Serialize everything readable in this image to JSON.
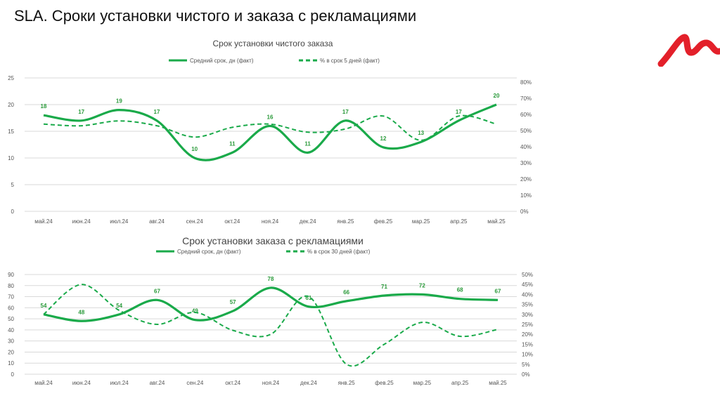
{
  "page": {
    "title": "SLA. Сроки установки чистого и заказа с рекламациями",
    "logo_text": "M"
  },
  "colors": {
    "line": "#1aaa4a",
    "label": "#2a9a3a",
    "axis": "#555",
    "grid": "#d9d9d9",
    "logo": "#e3202a"
  },
  "chart_data": [
    {
      "type": "line",
      "title": "Срок установки чистого заказа",
      "categories": [
        "май.24",
        "июн.24",
        "июл.24",
        "авг.24",
        "сен.24",
        "окт.24",
        "ноя.24",
        "дек.24",
        "янв.25",
        "фев.25",
        "мар.25",
        "апр.25",
        "май.25"
      ],
      "series": [
        {
          "name": "Средний срок, дн (факт)",
          "axis": "left",
          "style": "solid",
          "values": [
            18,
            17,
            19,
            17,
            10,
            11,
            16,
            11,
            17,
            12,
            13,
            17,
            20
          ],
          "labels": [
            "18",
            "17",
            "19",
            "17",
            "10",
            "11",
            "16",
            "11",
            "17",
            "12",
            "13",
            "17",
            "20"
          ]
        },
        {
          "name": "% в срок 5 дней (факт)",
          "axis": "right",
          "style": "dashed",
          "values": [
            54,
            53,
            56,
            53,
            46,
            52,
            54,
            49,
            51,
            59,
            44,
            59,
            54
          ]
        }
      ],
      "ylim": [
        0,
        25
      ],
      "yticks": [
        "0",
        "5",
        "10",
        "15",
        "20",
        "25"
      ],
      "y2lim": [
        0,
        80
      ],
      "y2ticks": [
        "0%",
        "10%",
        "20%",
        "30%",
        "40%",
        "50%",
        "60%",
        "70%",
        "80%"
      ],
      "legend": "top"
    },
    {
      "type": "line",
      "title": "Срок установки заказа с рекламациями",
      "categories": [
        "май.24",
        "июн.24",
        "июл.24",
        "авг.24",
        "сен.24",
        "окт.24",
        "ноя.24",
        "дек.24",
        "янв.25",
        "фев.25",
        "мар.25",
        "апр.25",
        "май.25"
      ],
      "series": [
        {
          "name": "Средний срок, дн (факт)",
          "axis": "left",
          "style": "solid",
          "values": [
            54,
            48,
            54,
            67,
            49,
            57,
            78,
            61,
            66,
            71,
            72,
            68,
            67
          ],
          "labels": [
            "54",
            "48",
            "54",
            "67",
            "49",
            "57",
            "78",
            "61",
            "66",
            "71",
            "72",
            "68",
            "67"
          ]
        },
        {
          "name": "% в срок 30 дней (факт)",
          "axis": "right",
          "style": "dashed",
          "values": [
            30,
            45,
            32,
            25,
            31,
            22,
            20,
            39,
            5,
            15,
            26,
            19,
            22.5
          ]
        }
      ],
      "ylim": [
        0,
        90
      ],
      "yticks": [
        "0",
        "10",
        "20",
        "30",
        "40",
        "50",
        "60",
        "70",
        "80",
        "90"
      ],
      "y2lim": [
        0,
        50
      ],
      "y2ticks": [
        "0%",
        "5%",
        "10%",
        "15%",
        "20%",
        "25%",
        "30%",
        "35%",
        "40%",
        "45%",
        "50%"
      ],
      "legend": "top"
    }
  ]
}
